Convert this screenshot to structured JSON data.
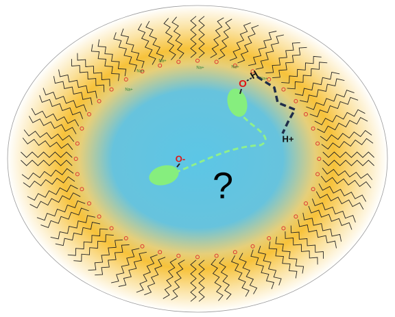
{
  "question": "?",
  "labels": {
    "proton_free": "H+",
    "proton_bound": "H",
    "oxygen_bound": "O",
    "oxygen_free": "O-"
  },
  "counterions": [
    "Na+",
    "Na+",
    "Na+",
    "Na+",
    "Na+",
    "Na+"
  ]
}
